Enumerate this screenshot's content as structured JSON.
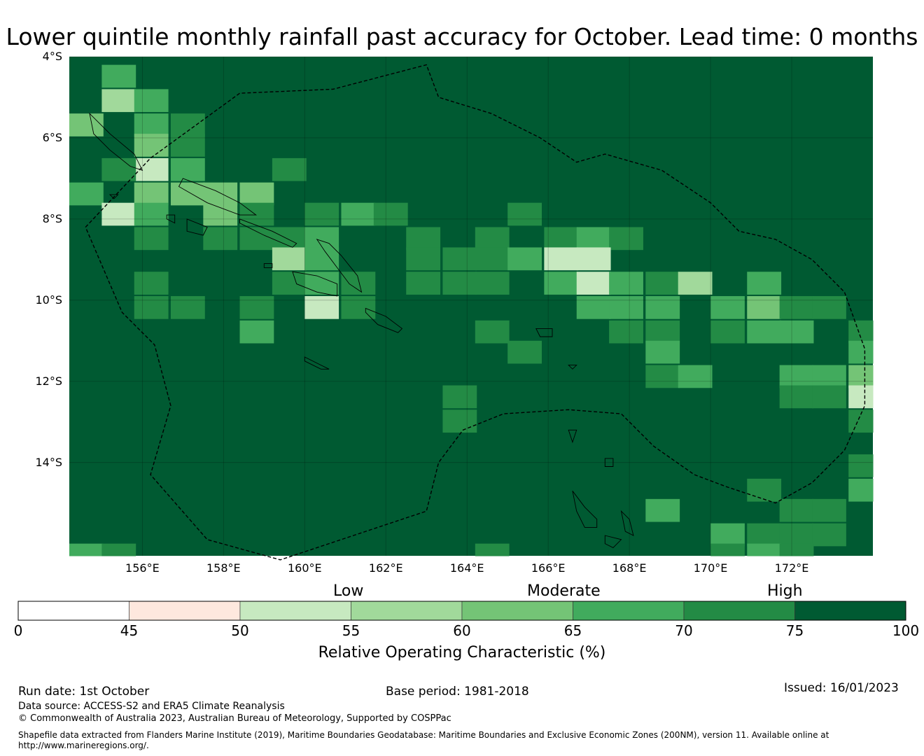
{
  "title": "Lower quintile monthly rainfall past accuracy for October. Lead time: 0 months",
  "map": {
    "lat_labels": [
      "4°S",
      "6°S",
      "8°S",
      "10°S",
      "12°S",
      "14°S"
    ],
    "lon_labels": [
      "156°E",
      "158°E",
      "160°E",
      "162°E",
      "164°E",
      "166°E",
      "168°E",
      "170°E",
      "172°E"
    ],
    "lon_range": [
      154.2,
      174.0
    ],
    "lat_range": [
      -16.3,
      -4.0
    ],
    "base_color": "#005a32",
    "cells": [
      {
        "lon": 155.0,
        "lat": -4.2,
        "c": "#41ab5d"
      },
      {
        "lon": 155.0,
        "lat": -4.8,
        "c": "#a1d99b"
      },
      {
        "lon": 155.8,
        "lat": -4.8,
        "c": "#41ab5d"
      },
      {
        "lon": 154.2,
        "lat": -5.4,
        "c": "#74c476"
      },
      {
        "lon": 155.8,
        "lat": -5.4,
        "c": "#41ab5d"
      },
      {
        "lon": 156.7,
        "lat": -5.4,
        "c": "#238b45"
      },
      {
        "lon": 155.8,
        "lat": -5.9,
        "c": "#74c476"
      },
      {
        "lon": 156.7,
        "lat": -5.9,
        "c": "#238b45"
      },
      {
        "lon": 155.8,
        "lat": -6.5,
        "c": "#c7e9c0"
      },
      {
        "lon": 156.7,
        "lat": -6.5,
        "c": "#41ab5d"
      },
      {
        "lon": 155.0,
        "lat": -6.5,
        "c": "#238b45"
      },
      {
        "lon": 159.2,
        "lat": -6.5,
        "c": "#238b45"
      },
      {
        "lon": 154.2,
        "lat": -7.1,
        "c": "#41ab5d"
      },
      {
        "lon": 155.8,
        "lat": -7.1,
        "c": "#74c476"
      },
      {
        "lon": 156.7,
        "lat": -7.1,
        "c": "#74c476"
      },
      {
        "lon": 157.5,
        "lat": -7.1,
        "c": "#74c476"
      },
      {
        "lon": 158.4,
        "lat": -7.1,
        "c": "#74c476"
      },
      {
        "lon": 155.0,
        "lat": -7.6,
        "c": "#c7e9c0"
      },
      {
        "lon": 155.8,
        "lat": -7.6,
        "c": "#41ab5d"
      },
      {
        "lon": 157.5,
        "lat": -7.6,
        "c": "#74c476"
      },
      {
        "lon": 158.4,
        "lat": -7.6,
        "c": "#238b45"
      },
      {
        "lon": 160.0,
        "lat": -7.6,
        "c": "#238b45"
      },
      {
        "lon": 160.9,
        "lat": -7.6,
        "c": "#41ab5d"
      },
      {
        "lon": 161.7,
        "lat": -7.6,
        "c": "#238b45"
      },
      {
        "lon": 165.0,
        "lat": -7.6,
        "c": "#238b45"
      },
      {
        "lon": 155.8,
        "lat": -8.2,
        "c": "#238b45"
      },
      {
        "lon": 157.5,
        "lat": -8.2,
        "c": "#238b45"
      },
      {
        "lon": 158.4,
        "lat": -8.2,
        "c": "#238b45"
      },
      {
        "lon": 159.2,
        "lat": -8.2,
        "c": "#238b45"
      },
      {
        "lon": 160.0,
        "lat": -8.2,
        "c": "#41ab5d"
      },
      {
        "lon": 162.5,
        "lat": -8.2,
        "c": "#238b45"
      },
      {
        "lon": 164.2,
        "lat": -8.2,
        "c": "#238b45"
      },
      {
        "lon": 165.9,
        "lat": -8.2,
        "c": "#238b45"
      },
      {
        "lon": 166.7,
        "lat": -8.2,
        "c": "#41ab5d"
      },
      {
        "lon": 167.5,
        "lat": -8.2,
        "c": "#238b45"
      },
      {
        "lon": 159.2,
        "lat": -8.7,
        "c": "#a1d99b"
      },
      {
        "lon": 160.0,
        "lat": -8.7,
        "c": "#41ab5d"
      },
      {
        "lon": 162.5,
        "lat": -8.7,
        "c": "#238b45"
      },
      {
        "lon": 163.4,
        "lat": -8.7,
        "c": "#238b45"
      },
      {
        "lon": 164.2,
        "lat": -8.7,
        "c": "#238b45"
      },
      {
        "lon": 165.0,
        "lat": -8.7,
        "c": "#41ab5d"
      },
      {
        "lon": 165.9,
        "lat": -8.7,
        "c": "#c7e9c0"
      },
      {
        "lon": 166.7,
        "lat": -8.7,
        "c": "#c7e9c0"
      },
      {
        "lon": 155.8,
        "lat": -9.3,
        "c": "#238b45"
      },
      {
        "lon": 159.2,
        "lat": -9.3,
        "c": "#238b45"
      },
      {
        "lon": 160.0,
        "lat": -9.3,
        "c": "#41ab5d"
      },
      {
        "lon": 160.9,
        "lat": -9.3,
        "c": "#238b45"
      },
      {
        "lon": 162.5,
        "lat": -9.3,
        "c": "#238b45"
      },
      {
        "lon": 163.4,
        "lat": -9.3,
        "c": "#238b45"
      },
      {
        "lon": 164.2,
        "lat": -9.3,
        "c": "#238b45"
      },
      {
        "lon": 165.9,
        "lat": -9.3,
        "c": "#41ab5d"
      },
      {
        "lon": 166.7,
        "lat": -9.3,
        "c": "#c7e9c0"
      },
      {
        "lon": 167.5,
        "lat": -9.3,
        "c": "#41ab5d"
      },
      {
        "lon": 168.4,
        "lat": -9.3,
        "c": "#238b45"
      },
      {
        "lon": 169.2,
        "lat": -9.3,
        "c": "#a1d99b"
      },
      {
        "lon": 170.9,
        "lat": -9.3,
        "c": "#41ab5d"
      },
      {
        "lon": 155.8,
        "lat": -9.9,
        "c": "#238b45"
      },
      {
        "lon": 156.7,
        "lat": -9.9,
        "c": "#238b45"
      },
      {
        "lon": 158.4,
        "lat": -9.9,
        "c": "#238b45"
      },
      {
        "lon": 160.0,
        "lat": -9.9,
        "c": "#c7e9c0"
      },
      {
        "lon": 160.9,
        "lat": -9.9,
        "c": "#238b45"
      },
      {
        "lon": 166.7,
        "lat": -9.9,
        "c": "#41ab5d"
      },
      {
        "lon": 167.5,
        "lat": -9.9,
        "c": "#41ab5d"
      },
      {
        "lon": 168.4,
        "lat": -9.9,
        "c": "#41ab5d"
      },
      {
        "lon": 170.0,
        "lat": -9.9,
        "c": "#41ab5d"
      },
      {
        "lon": 170.9,
        "lat": -9.9,
        "c": "#74c476"
      },
      {
        "lon": 171.7,
        "lat": -9.9,
        "c": "#238b45"
      },
      {
        "lon": 172.5,
        "lat": -9.9,
        "c": "#238b45"
      },
      {
        "lon": 158.4,
        "lat": -10.5,
        "c": "#41ab5d"
      },
      {
        "lon": 164.2,
        "lat": -10.5,
        "c": "#238b45"
      },
      {
        "lon": 167.5,
        "lat": -10.5,
        "c": "#238b45"
      },
      {
        "lon": 168.4,
        "lat": -10.5,
        "c": "#238b45"
      },
      {
        "lon": 170.0,
        "lat": -10.5,
        "c": "#238b45"
      },
      {
        "lon": 170.9,
        "lat": -10.5,
        "c": "#41ab5d"
      },
      {
        "lon": 171.7,
        "lat": -10.5,
        "c": "#41ab5d"
      },
      {
        "lon": 173.4,
        "lat": -10.5,
        "c": "#238b45"
      },
      {
        "lon": 165.0,
        "lat": -11.0,
        "c": "#238b45"
      },
      {
        "lon": 168.4,
        "lat": -11.0,
        "c": "#41ab5d"
      },
      {
        "lon": 173.4,
        "lat": -11.0,
        "c": "#41ab5d"
      },
      {
        "lon": 168.4,
        "lat": -11.6,
        "c": "#238b45"
      },
      {
        "lon": 169.2,
        "lat": -11.6,
        "c": "#41ab5d"
      },
      {
        "lon": 171.7,
        "lat": -11.6,
        "c": "#41ab5d"
      },
      {
        "lon": 172.5,
        "lat": -11.6,
        "c": "#41ab5d"
      },
      {
        "lon": 173.4,
        "lat": -11.6,
        "c": "#74c476"
      },
      {
        "lon": 163.4,
        "lat": -12.1,
        "c": "#238b45"
      },
      {
        "lon": 171.7,
        "lat": -12.1,
        "c": "#238b45"
      },
      {
        "lon": 172.5,
        "lat": -12.1,
        "c": "#238b45"
      },
      {
        "lon": 173.4,
        "lat": -12.1,
        "c": "#c7e9c0"
      },
      {
        "lon": 163.4,
        "lat": -12.7,
        "c": "#238b45"
      },
      {
        "lon": 173.4,
        "lat": -12.7,
        "c": "#238b45"
      },
      {
        "lon": 173.4,
        "lat": -13.8,
        "c": "#238b45"
      },
      {
        "lon": 170.9,
        "lat": -14.4,
        "c": "#238b45"
      },
      {
        "lon": 173.4,
        "lat": -14.4,
        "c": "#41ab5d"
      },
      {
        "lon": 168.4,
        "lat": -14.9,
        "c": "#41ab5d"
      },
      {
        "lon": 171.7,
        "lat": -14.9,
        "c": "#238b45"
      },
      {
        "lon": 172.5,
        "lat": -14.9,
        "c": "#238b45"
      },
      {
        "lon": 170.0,
        "lat": -15.5,
        "c": "#41ab5d"
      },
      {
        "lon": 170.9,
        "lat": -15.5,
        "c": "#238b45"
      },
      {
        "lon": 171.7,
        "lat": -15.5,
        "c": "#238b45"
      },
      {
        "lon": 172.5,
        "lat": -15.5,
        "c": "#238b45"
      },
      {
        "lon": 154.2,
        "lat": -16.0,
        "c": "#41ab5d"
      },
      {
        "lon": 155.0,
        "lat": -16.0,
        "c": "#238b45"
      },
      {
        "lon": 164.2,
        "lat": -16.0,
        "c": "#238b45"
      },
      {
        "lon": 170.0,
        "lat": -16.0,
        "c": "#238b45"
      },
      {
        "lon": 170.9,
        "lat": -16.0,
        "c": "#41ab5d"
      },
      {
        "lon": 171.7,
        "lat": -16.0,
        "c": "#238b45"
      }
    ],
    "boundary": [
      [
        154.6,
        -8.2
      ],
      [
        156.2,
        -6.5
      ],
      [
        158.4,
        -4.9
      ],
      [
        160.7,
        -4.8
      ],
      [
        163.0,
        -4.2
      ],
      [
        163.3,
        -5.0
      ],
      [
        164.6,
        -5.4
      ],
      [
        165.8,
        -6.0
      ],
      [
        166.7,
        -6.6
      ],
      [
        167.4,
        -6.4
      ],
      [
        168.8,
        -6.8
      ],
      [
        170.0,
        -7.6
      ],
      [
        170.7,
        -8.3
      ],
      [
        171.6,
        -8.5
      ],
      [
        172.5,
        -9.0
      ],
      [
        173.3,
        -9.8
      ],
      [
        173.8,
        -11.2
      ],
      [
        173.8,
        -12.6
      ],
      [
        173.3,
        -13.7
      ],
      [
        172.5,
        -14.5
      ],
      [
        171.6,
        -15.0
      ],
      [
        170.4,
        -14.6
      ],
      [
        169.6,
        -14.3
      ],
      [
        168.6,
        -13.6
      ],
      [
        167.8,
        -12.8
      ],
      [
        166.5,
        -12.7
      ],
      [
        164.9,
        -12.8
      ],
      [
        163.9,
        -13.2
      ],
      [
        163.3,
        -14.0
      ],
      [
        163.0,
        -15.2
      ],
      [
        161.2,
        -15.8
      ],
      [
        159.4,
        -16.4
      ],
      [
        157.6,
        -15.9
      ],
      [
        156.2,
        -14.3
      ],
      [
        156.7,
        -12.6
      ],
      [
        156.3,
        -11.1
      ],
      [
        155.5,
        -10.3
      ],
      [
        154.6,
        -8.2
      ]
    ],
    "islands": [
      [
        [
          154.7,
          -5.4
        ],
        [
          155.2,
          -5.9
        ],
        [
          155.8,
          -6.4
        ],
        [
          156.0,
          -6.8
        ],
        [
          155.7,
          -6.7
        ],
        [
          155.2,
          -6.3
        ],
        [
          154.8,
          -5.9
        ],
        [
          154.7,
          -5.4
        ]
      ],
      [
        [
          157.0,
          -7.0
        ],
        [
          157.8,
          -7.3
        ],
        [
          158.4,
          -7.6
        ],
        [
          158.8,
          -7.9
        ],
        [
          158.4,
          -7.9
        ],
        [
          157.6,
          -7.6
        ],
        [
          156.9,
          -7.2
        ],
        [
          157.0,
          -7.0
        ]
      ],
      [
        [
          158.4,
          -8.0
        ],
        [
          159.2,
          -8.3
        ],
        [
          159.8,
          -8.6
        ],
        [
          159.7,
          -8.7
        ],
        [
          159.0,
          -8.4
        ],
        [
          158.4,
          -8.1
        ],
        [
          158.4,
          -8.0
        ]
      ],
      [
        [
          160.3,
          -8.5
        ],
        [
          160.6,
          -8.6
        ],
        [
          160.9,
          -8.9
        ],
        [
          161.3,
          -9.4
        ],
        [
          161.4,
          -9.8
        ],
        [
          161.1,
          -9.6
        ],
        [
          160.8,
          -9.2
        ],
        [
          160.5,
          -8.8
        ],
        [
          160.3,
          -8.5
        ]
      ],
      [
        [
          159.7,
          -9.3
        ],
        [
          160.3,
          -9.4
        ],
        [
          160.8,
          -9.6
        ],
        [
          160.8,
          -9.9
        ],
        [
          160.3,
          -9.8
        ],
        [
          159.8,
          -9.6
        ],
        [
          159.7,
          -9.3
        ]
      ],
      [
        [
          157.1,
          -8.0
        ],
        [
          157.6,
          -8.2
        ],
        [
          157.5,
          -8.4
        ],
        [
          157.1,
          -8.3
        ],
        [
          157.1,
          -8.0
        ]
      ],
      [
        [
          161.5,
          -10.2
        ],
        [
          162.0,
          -10.4
        ],
        [
          162.4,
          -10.7
        ],
        [
          162.3,
          -10.8
        ],
        [
          161.8,
          -10.6
        ],
        [
          161.5,
          -10.3
        ],
        [
          161.5,
          -10.2
        ]
      ],
      [
        [
          160.0,
          -11.4
        ],
        [
          160.4,
          -11.6
        ],
        [
          160.6,
          -11.7
        ],
        [
          160.4,
          -11.7
        ],
        [
          160.0,
          -11.5
        ],
        [
          160.0,
          -11.4
        ]
      ],
      [
        [
          165.7,
          -10.7
        ],
        [
          166.1,
          -10.7
        ],
        [
          166.1,
          -10.9
        ],
        [
          165.8,
          -10.9
        ],
        [
          165.7,
          -10.7
        ]
      ],
      [
        [
          166.6,
          -14.7
        ],
        [
          166.9,
          -15.1
        ],
        [
          167.2,
          -15.4
        ],
        [
          167.2,
          -15.6
        ],
        [
          166.9,
          -15.6
        ],
        [
          166.7,
          -15.2
        ],
        [
          166.6,
          -14.7
        ]
      ],
      [
        [
          167.8,
          -15.2
        ],
        [
          168.0,
          -15.4
        ],
        [
          168.1,
          -15.8
        ],
        [
          167.9,
          -15.7
        ],
        [
          167.8,
          -15.2
        ]
      ],
      [
        [
          167.4,
          -15.8
        ],
        [
          167.8,
          -15.9
        ],
        [
          167.6,
          -16.1
        ],
        [
          167.4,
          -16.0
        ],
        [
          167.4,
          -15.8
        ]
      ],
      [
        [
          167.4,
          -13.9
        ],
        [
          167.6,
          -13.9
        ],
        [
          167.6,
          -14.1
        ],
        [
          167.4,
          -14.1
        ],
        [
          167.4,
          -13.9
        ]
      ],
      [
        [
          166.5,
          -13.2
        ],
        [
          166.7,
          -13.2
        ],
        [
          166.6,
          -13.5
        ],
        [
          166.5,
          -13.2
        ]
      ],
      [
        [
          155.2,
          -7.4
        ],
        [
          155.4,
          -7.4
        ],
        [
          155.3,
          -7.5
        ],
        [
          155.2,
          -7.4
        ]
      ],
      [
        [
          156.6,
          -7.9
        ],
        [
          156.8,
          -7.9
        ],
        [
          156.8,
          -8.1
        ],
        [
          156.6,
          -8.0
        ],
        [
          156.6,
          -7.9
        ]
      ],
      [
        [
          159.0,
          -9.1
        ],
        [
          159.2,
          -9.1
        ],
        [
          159.2,
          -9.2
        ],
        [
          159.0,
          -9.2
        ],
        [
          159.0,
          -9.1
        ]
      ],
      [
        [
          166.5,
          -11.6
        ],
        [
          166.7,
          -11.6
        ],
        [
          166.6,
          -11.7
        ],
        [
          166.5,
          -11.6
        ]
      ]
    ]
  },
  "colorbar": {
    "colors": [
      "#ffffff",
      "#fee8de",
      "#c7e9c0",
      "#a1d99b",
      "#74c476",
      "#41ab5d",
      "#238b45",
      "#005a32"
    ],
    "boundaries": [
      0,
      45,
      50,
      55,
      60,
      65,
      70,
      75,
      100
    ],
    "tick_labels": [
      "0",
      "45",
      "50",
      "55",
      "60",
      "65",
      "70",
      "75",
      "100"
    ],
    "category_labels": [
      "Low",
      "Moderate",
      "High"
    ],
    "title": "Relative Operating Characteristic (%)"
  },
  "footer": {
    "run_date": "Run date: 1st October",
    "base_period": "Base period: 1981-2018",
    "issued": "Issued: 16/01/2023",
    "data_source": "Data source: ACCESS-S2 and ERA5 Climate Reanalysis",
    "copyright": "© Commonwealth of Australia 2023, Australian Bureau of Meteorology, Supported by COSPPac",
    "shapefile": "Shapefile data extracted from Flanders Marine Institute (2019), Maritime Boundaries Geodatabase: Maritime Boundaries and Exclusive Economic Zones (200NM), version 11. Available online at http://www.marineregions.org/."
  }
}
